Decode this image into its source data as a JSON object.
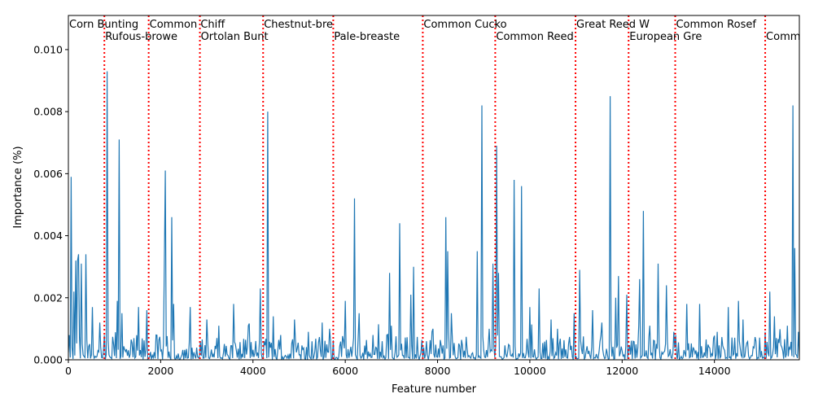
{
  "chart_data": {
    "type": "line",
    "xlabel": "Feature number",
    "ylabel": "Importance (%)",
    "xlim": [
      0,
      15840
    ],
    "ylim": [
      0,
      0.0111
    ],
    "xticks": [
      0,
      2000,
      4000,
      6000,
      8000,
      10000,
      12000,
      14000
    ],
    "xtick_labels": [
      "0",
      "2000",
      "4000",
      "6000",
      "8000",
      "10000",
      "12000",
      "14000"
    ],
    "yticks": [
      0.0,
      0.002,
      0.004,
      0.006,
      0.008,
      0.01
    ],
    "ytick_labels": [
      "0.000",
      "0.002",
      "0.004",
      "0.006",
      "0.008",
      "0.010"
    ],
    "series_color": "#1f77b4",
    "divider_color": "#ff0000",
    "grid": false,
    "peaks": [
      [
        60,
        0.0059
      ],
      [
        110,
        0.0022
      ],
      [
        150,
        0.0032
      ],
      [
        190,
        0.0032
      ],
      [
        220,
        0.0034
      ],
      [
        280,
        0.0031
      ],
      [
        380,
        0.0034
      ],
      [
        520,
        0.0017
      ],
      [
        680,
        0.0012
      ],
      [
        840,
        0.0093
      ],
      [
        1050,
        0.0019
      ],
      [
        1100,
        0.0071
      ],
      [
        1160,
        0.0015
      ],
      [
        1520,
        0.0017
      ],
      [
        1700,
        0.0016
      ],
      [
        1900,
        0.0008
      ],
      [
        2080,
        0.0031
      ],
      [
        2100,
        0.0061
      ],
      [
        2240,
        0.0046
      ],
      [
        2280,
        0.0018
      ],
      [
        2640,
        0.0017
      ],
      [
        2850,
        0.0006
      ],
      [
        3000,
        0.0013
      ],
      [
        3250,
        0.0011
      ],
      [
        3570,
        0.0018
      ],
      [
        3900,
        0.0011
      ],
      [
        4150,
        0.0023
      ],
      [
        4310,
        0.008
      ],
      [
        4430,
        0.0014
      ],
      [
        4600,
        0.0008
      ],
      [
        4900,
        0.0013
      ],
      [
        5200,
        0.0009
      ],
      [
        5500,
        0.0012
      ],
      [
        5650,
        0.001
      ],
      [
        6000,
        0.0019
      ],
      [
        6200,
        0.0052
      ],
      [
        6290,
        0.0015
      ],
      [
        6600,
        0.0008
      ],
      [
        6900,
        0.0008
      ],
      [
        6960,
        0.0028
      ],
      [
        7000,
        0.0011
      ],
      [
        7180,
        0.0044
      ],
      [
        7420,
        0.0021
      ],
      [
        7480,
        0.003
      ],
      [
        7700,
        0.0004
      ],
      [
        7900,
        0.001
      ],
      [
        8180,
        0.0046
      ],
      [
        8220,
        0.0035
      ],
      [
        8300,
        0.0015
      ],
      [
        8850,
        0.0035
      ],
      [
        8950,
        0.0082
      ],
      [
        9120,
        0.001
      ],
      [
        9200,
        0.0031
      ],
      [
        9270,
        0.0069
      ],
      [
        9310,
        0.0028
      ],
      [
        9650,
        0.0058
      ],
      [
        9820,
        0.0056
      ],
      [
        10000,
        0.0017
      ],
      [
        10200,
        0.0023
      ],
      [
        10450,
        0.0013
      ],
      [
        10600,
        0.001
      ],
      [
        10950,
        0.0015
      ],
      [
        11080,
        0.0029
      ],
      [
        11350,
        0.0016
      ],
      [
        11560,
        0.0012
      ],
      [
        11740,
        0.0085
      ],
      [
        11850,
        0.002
      ],
      [
        11920,
        0.0027
      ],
      [
        12100,
        0.0021
      ],
      [
        12380,
        0.0026
      ],
      [
        12450,
        0.0048
      ],
      [
        12600,
        0.0011
      ],
      [
        12780,
        0.0031
      ],
      [
        12950,
        0.0024
      ],
      [
        13150,
        0.0008
      ],
      [
        13400,
        0.0018
      ],
      [
        13680,
        0.0018
      ],
      [
        14050,
        0.0009
      ],
      [
        14300,
        0.0017
      ],
      [
        14520,
        0.0019
      ],
      [
        14620,
        0.0013
      ],
      [
        14900,
        0.0006
      ],
      [
        15100,
        0.0009
      ],
      [
        15200,
        0.0022
      ],
      [
        15300,
        0.0014
      ],
      [
        15580,
        0.0011
      ],
      [
        15700,
        0.0082
      ],
      [
        15740,
        0.0036
      ],
      [
        15820,
        0.0009
      ]
    ],
    "dividers": [
      {
        "x": 780,
        "label": "Corn Bunting",
        "row": 0
      },
      {
        "x": 1740,
        "label": "Rufous-browe",
        "row": 1
      },
      {
        "x": 2850,
        "label": "Common Chiff",
        "row": 0
      },
      {
        "x": 4220,
        "label": "Ortolan Bunt",
        "row": 1
      },
      {
        "x": 5740,
        "label": "Chestnut-bre",
        "row": 0
      },
      {
        "x": 7680,
        "label": "Pale-breaste",
        "row": 1
      },
      {
        "x": 9250,
        "label": "Common Cucko",
        "row": 0
      },
      {
        "x": 10990,
        "label": "Common Reed",
        "row": 1
      },
      {
        "x": 12140,
        "label": "Great Reed W",
        "row": 0
      },
      {
        "x": 13150,
        "label": "European Gre",
        "row": 1
      },
      {
        "x": 15100,
        "label": "Common Rosef",
        "row": 0
      },
      {
        "x": 15840,
        "label": "Common",
        "row": 1
      }
    ]
  }
}
